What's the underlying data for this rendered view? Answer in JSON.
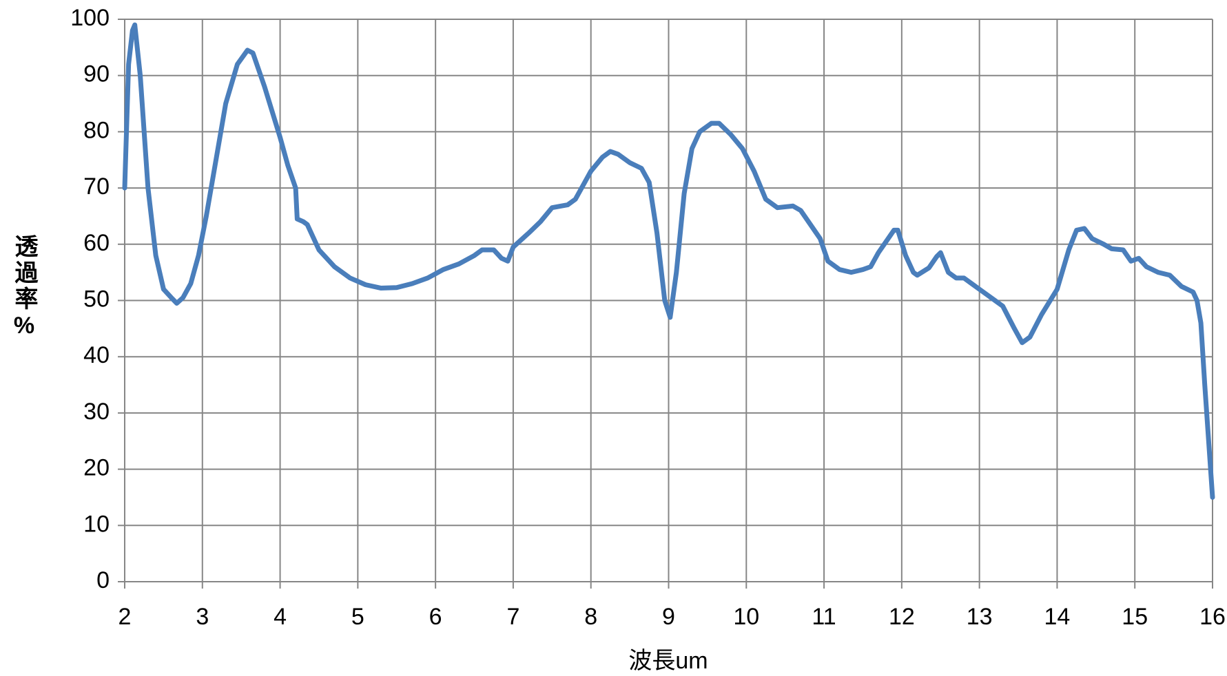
{
  "chart_data": {
    "type": "line",
    "x_label": "波長um",
    "y_label": "透過率%",
    "xlim": [
      2,
      16
    ],
    "ylim": [
      0,
      100
    ],
    "xticks": [
      2,
      3,
      4,
      5,
      6,
      7,
      8,
      9,
      10,
      11,
      12,
      13,
      14,
      15,
      16
    ],
    "yticks": [
      0,
      10,
      20,
      30,
      40,
      50,
      60,
      70,
      80,
      90,
      100
    ],
    "grid": true,
    "series": [
      {
        "name": "透過率",
        "color": "#4a7ebb",
        "x": [
          2.0,
          2.05,
          2.1,
          2.13,
          2.2,
          2.3,
          2.4,
          2.5,
          2.6,
          2.67,
          2.75,
          2.85,
          2.95,
          3.05,
          3.2,
          3.3,
          3.45,
          3.58,
          3.65,
          3.8,
          4.0,
          4.1,
          4.2,
          4.22,
          4.3,
          4.35,
          4.5,
          4.7,
          4.9,
          5.1,
          5.3,
          5.5,
          5.7,
          5.9,
          6.1,
          6.3,
          6.5,
          6.6,
          6.75,
          6.85,
          6.93,
          7.0,
          7.2,
          7.35,
          7.5,
          7.7,
          7.8,
          7.9,
          8.0,
          8.15,
          8.25,
          8.35,
          8.5,
          8.65,
          8.75,
          8.85,
          8.95,
          9.02,
          9.1,
          9.2,
          9.3,
          9.4,
          9.55,
          9.65,
          9.8,
          9.95,
          10.1,
          10.25,
          10.4,
          10.6,
          10.7,
          10.85,
          10.95,
          11.05,
          11.2,
          11.35,
          11.5,
          11.6,
          11.7,
          11.8,
          11.9,
          11.95,
          12.05,
          12.15,
          12.2,
          12.35,
          12.45,
          12.5,
          12.6,
          12.7,
          12.8,
          12.9,
          13.0,
          13.1,
          13.2,
          13.3,
          13.45,
          13.55,
          13.65,
          13.8,
          14.0,
          14.15,
          14.25,
          14.35,
          14.45,
          14.6,
          14.7,
          14.85,
          14.95,
          15.05,
          15.15,
          15.3,
          15.45,
          15.6,
          15.75,
          15.8,
          15.85,
          15.9,
          16.0
        ],
        "values": [
          70,
          92,
          98,
          99,
          90,
          70,
          58,
          52,
          50.5,
          49.5,
          50.5,
          53,
          58,
          65,
          77,
          85,
          92,
          94.5,
          94,
          88,
          79,
          74,
          70,
          64.5,
          64,
          63.5,
          59,
          56,
          54,
          52.8,
          52.2,
          52.3,
          53,
          54,
          55.5,
          56.5,
          58,
          59,
          59,
          57.5,
          57,
          59.5,
          62,
          64,
          66.5,
          67,
          68,
          70.5,
          73,
          75.5,
          76.5,
          76,
          74.5,
          73.5,
          71,
          62,
          50,
          47,
          55,
          69,
          77,
          80,
          81.5,
          81.5,
          79.5,
          77,
          73,
          68,
          66.5,
          66.8,
          66,
          63,
          61,
          57,
          55.5,
          55,
          55.5,
          56,
          58.5,
          60.5,
          62.5,
          62.5,
          58,
          55,
          54.5,
          55.8,
          57.8,
          58.5,
          55,
          54,
          54,
          53,
          52,
          51,
          50,
          49,
          45,
          42.5,
          43.5,
          47.5,
          52,
          59,
          62.5,
          62.8,
          61,
          60,
          59.2,
          59,
          57,
          57.5,
          56,
          55,
          54.5,
          52.5,
          51.5,
          50,
          46,
          35,
          15
        ]
      }
    ]
  }
}
